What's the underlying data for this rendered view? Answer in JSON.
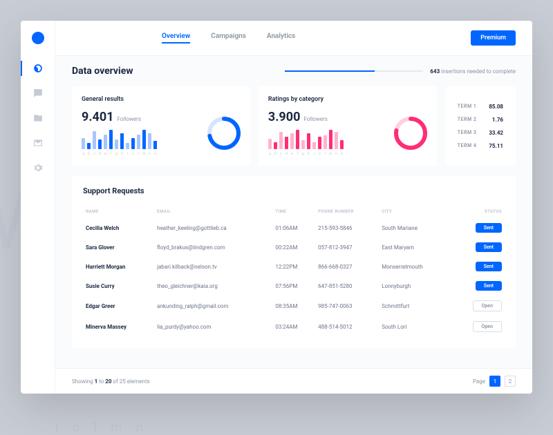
{
  "tabs": [
    "Overview",
    "Campaigns",
    "Analytics"
  ],
  "premium": "Premium",
  "pageTitle": "Data overview",
  "progress": {
    "pct": 65,
    "count": "643",
    "text": "insertions needed to complete"
  },
  "general": {
    "title": "General results",
    "value": "9.401",
    "label": "Followers",
    "bars": [
      14,
      8,
      22,
      12,
      18,
      24,
      12,
      20,
      8,
      14,
      18,
      24,
      20,
      10
    ],
    "tags": [
      "a",
      "b",
      "c",
      "d",
      "e",
      "f",
      "g",
      "h",
      "i",
      "o",
      "l",
      "m",
      "n",
      "e"
    ],
    "colors": {
      "barLight": "#a8c5ff",
      "barDark": "#0066ff",
      "donutBg": "#d6e4ff",
      "donutFg": "#0066ff"
    },
    "donut": {
      "pct": 72,
      "stroke": 6
    }
  },
  "ratings": {
    "title": "Ratings by category",
    "value": "3.900",
    "label": "Followers",
    "bars": [
      12,
      8,
      20,
      14,
      18,
      22,
      10,
      18,
      8,
      14,
      16,
      22,
      20,
      10
    ],
    "tags": [
      "a",
      "b",
      "c",
      "d",
      "e",
      "f",
      "g",
      "h",
      "i",
      "o",
      "l",
      "m",
      "n",
      "e"
    ],
    "colors": {
      "barLight": "#ffb3cd",
      "barDark": "#ff2d78",
      "donutBg": "#ffd1e1",
      "donutFg": "#ff2d78"
    },
    "donut": {
      "pct": 78,
      "stroke": 6
    }
  },
  "terms": [
    {
      "label": "TERM 1",
      "value": "85.08"
    },
    {
      "label": "TERM 2",
      "value": "1.76"
    },
    {
      "label": "TERM 3",
      "value": "33.42"
    },
    {
      "label": "TERM 4",
      "value": "75.11"
    }
  ],
  "table": {
    "title": "Support Requests",
    "cols": [
      "NAME",
      "EMAIL",
      "TIME",
      "PHONE NUMBER",
      "CITY",
      "STATUS"
    ],
    "rows": [
      {
        "name": "Cecilia Welch",
        "email": "heather_keeling@gottlieb.ca",
        "time": "01:06AM",
        "phone": "215-593-5846",
        "city": "South Mariane",
        "status": "Sent"
      },
      {
        "name": "Sara Glover",
        "email": "floyd_brakus@lindgren.com",
        "time": "00:22AM",
        "phone": "057-812-3947",
        "city": "East Maryam",
        "status": "Sent"
      },
      {
        "name": "Harriett Morgan",
        "email": "jabari.kilback@nelson.tv",
        "time": "12:22PM",
        "phone": "866-668-0327",
        "city": "Monserratmouth",
        "status": "Sent"
      },
      {
        "name": "Susie Curry",
        "email": "theo_gleichner@kaia.org",
        "time": "07:56PM",
        "phone": "647-851-5280",
        "city": "Lonnyburgh",
        "status": "Sent"
      },
      {
        "name": "Edgar Greer",
        "email": "ankunding_ralph@gmail.com",
        "time": "08:35AM",
        "phone": "985-747-0063",
        "city": "Schmittfurt",
        "status": "Open"
      },
      {
        "name": "Minerva Massey",
        "email": "lia_purdy@yahoo.com",
        "time": "03:24AM",
        "phone": "488-514-5012",
        "city": "South Lori",
        "status": "Open"
      }
    ]
  },
  "footer": {
    "text": "Showing 1 to 20 of 25 elements",
    "pageLabel": "Page",
    "current": 1,
    "total": 2
  }
}
